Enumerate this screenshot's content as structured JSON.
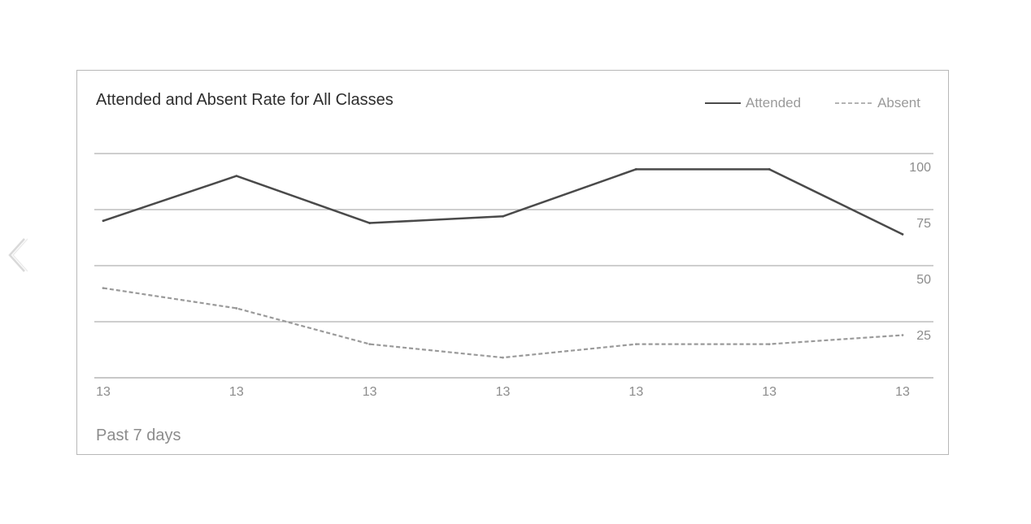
{
  "nav": {
    "prev_icon": "chevron-left-icon"
  },
  "card": {
    "title": "Attended and Absent Rate for All Classes",
    "footer": "Past 7 days"
  },
  "legend": [
    {
      "label": "Attended",
      "style": "solid",
      "color": "#4a4a4a"
    },
    {
      "label": "Absent",
      "style": "dashed",
      "color": "#9a9a9a"
    }
  ],
  "chart_data": {
    "type": "line",
    "title": "Attended and Absent Rate for All Classes",
    "xlabel": "",
    "ylabel": "",
    "categories": [
      "13",
      "13",
      "13",
      "13",
      "13",
      "13",
      "13"
    ],
    "ylim": [
      0,
      100
    ],
    "yticks": [
      25,
      50,
      75,
      100
    ],
    "grid": true,
    "legend_position": "top-right",
    "y_axis_side": "right",
    "series": [
      {
        "name": "Attended",
        "style": "solid",
        "color": "#4a4a4a",
        "values": [
          70,
          90,
          69,
          72,
          93,
          93,
          64
        ]
      },
      {
        "name": "Absent",
        "style": "dashed",
        "color": "#9a9a9a",
        "values": [
          40,
          31,
          15,
          9,
          15,
          15,
          19
        ]
      }
    ]
  }
}
